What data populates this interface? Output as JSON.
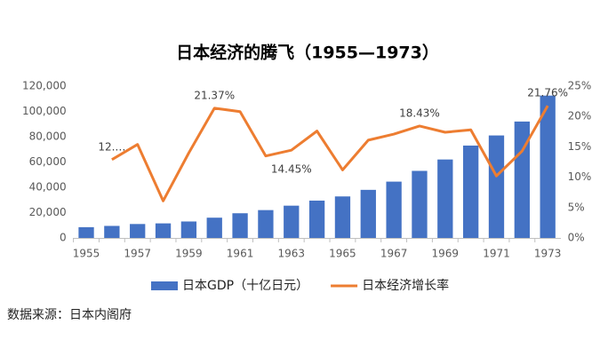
{
  "chart_data": {
    "type": "bar-line",
    "title": "日本经济的腾飞（1955—1973）",
    "categories": [
      "1955",
      null,
      "1957",
      null,
      "1959",
      null,
      "1961",
      null,
      "1963",
      null,
      "1965",
      null,
      "1967",
      null,
      "1969",
      null,
      "1971",
      null,
      "1973"
    ],
    "series": [
      {
        "name": "日本GDP（十亿日元）",
        "type": "bar",
        "color": "#4472c4",
        "values": [
          8500,
          9500,
          11000,
          11500,
          13000,
          16000,
          19500,
          22000,
          25500,
          29500,
          32800,
          38000,
          44500,
          53000,
          62000,
          73000,
          81000,
          92000,
          112500
        ]
      },
      {
        "name": "日本经济增长率",
        "type": "line",
        "axis": "y2",
        "color": "#ed7d31",
        "values": [
          null,
          12.9,
          15.4,
          6.1,
          14.0,
          21.37,
          20.8,
          13.5,
          14.45,
          17.6,
          11.2,
          16.1,
          17.1,
          18.43,
          17.4,
          17.8,
          10.2,
          14.3,
          21.76
        ],
        "value_labels": [
          null,
          "12.…",
          null,
          null,
          null,
          "21.37%",
          null,
          null,
          "14.45%",
          null,
          null,
          null,
          null,
          "18.43%",
          null,
          null,
          null,
          null,
          "21.76%"
        ]
      }
    ],
    "ylim": [
      0,
      120000
    ],
    "yticks": [
      0,
      {
        "value": 20000,
        "label": "20,000"
      },
      {
        "value": 40000,
        "label": "40,000"
      },
      {
        "value": 60000,
        "label": "60,000"
      },
      {
        "value": 80000,
        "label": "80,000"
      },
      {
        "value": 100000,
        "label": "100,000"
      },
      {
        "value": 120000,
        "label": "120,000"
      }
    ],
    "y2lim": [
      0,
      25
    ],
    "y2ticks": [
      {
        "value": 0,
        "label": "0%"
      },
      {
        "value": 5,
        "label": "5%"
      },
      {
        "value": 10,
        "label": "10%"
      },
      {
        "value": 15,
        "label": "15%"
      },
      {
        "value": 20,
        "label": "20%"
      },
      {
        "value": 25,
        "label": "25%"
      }
    ],
    "grid": false,
    "legend": "bottom",
    "source": "数据来源：日本内阁府"
  }
}
